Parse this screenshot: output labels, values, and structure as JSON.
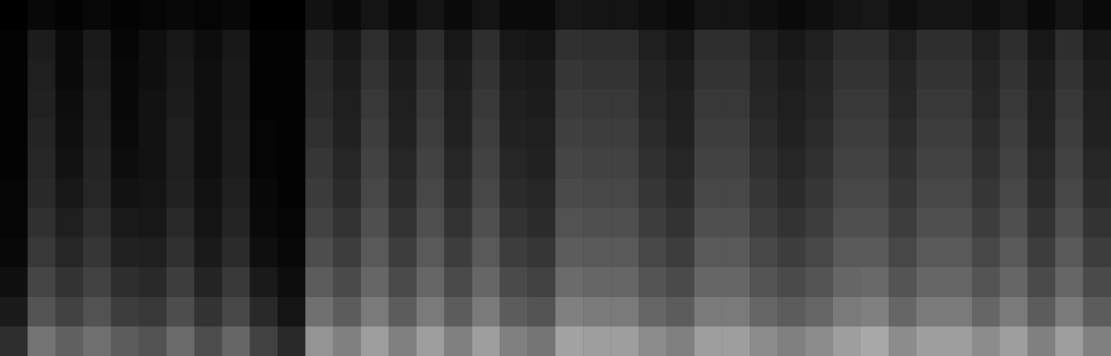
{
  "chart_data": {
    "type": "heatmap",
    "tick_labels": false,
    "grid": false,
    "color": [
      "#000000",
      "#ffffff"
    ],
    "color_range": [
      0,
      100
    ],
    "cells": [
      [
        18,
        10,
        6,
        3,
        2,
        2,
        1,
        1,
        1,
        1,
        1,
        0
      ],
      [
        45,
        33,
        27,
        22,
        19,
        16,
        15,
        14,
        13,
        12,
        11,
        3
      ],
      [
        38,
        26,
        20,
        15,
        12,
        9,
        7,
        6,
        5,
        4,
        4,
        1
      ],
      [
        44,
        32,
        26,
        21,
        18,
        15,
        14,
        13,
        12,
        11,
        10,
        3
      ],
      [
        36,
        24,
        18,
        13,
        10,
        7,
        5,
        4,
        3,
        3,
        2,
        1
      ],
      [
        32,
        22,
        16,
        12,
        9,
        8,
        7,
        7,
        7,
        6,
        6,
        2
      ],
      [
        42,
        30,
        24,
        19,
        16,
        13,
        12,
        12,
        11,
        10,
        9,
        3
      ],
      [
        30,
        20,
        14,
        10,
        8,
        7,
        6,
        6,
        6,
        6,
        5,
        2
      ],
      [
        40,
        28,
        22,
        17,
        14,
        12,
        11,
        11,
        10,
        10,
        9,
        3
      ],
      [
        26,
        16,
        10,
        6,
        4,
        3,
        2,
        2,
        1,
        1,
        1,
        0
      ],
      [
        16,
        8,
        5,
        3,
        2,
        1,
        1,
        1,
        1,
        1,
        1,
        0
      ],
      [
        58,
        44,
        36,
        30,
        26,
        23,
        21,
        19,
        17,
        16,
        14,
        7
      ],
      [
        50,
        36,
        29,
        24,
        20,
        17,
        15,
        13,
        12,
        11,
        9,
        4
      ],
      [
        62,
        48,
        40,
        35,
        31,
        28,
        26,
        24,
        22,
        20,
        18,
        8
      ],
      [
        50,
        36,
        29,
        24,
        20,
        17,
        15,
        13,
        12,
        11,
        9,
        4
      ],
      [
        62,
        48,
        40,
        35,
        31,
        28,
        26,
        24,
        22,
        20,
        18,
        8
      ],
      [
        50,
        36,
        29,
        24,
        20,
        17,
        15,
        13,
        12,
        11,
        9,
        4
      ],
      [
        62,
        48,
        40,
        35,
        31,
        28,
        26,
        24,
        22,
        20,
        18,
        8
      ],
      [
        50,
        36,
        29,
        24,
        20,
        17,
        15,
        13,
        12,
        11,
        9,
        4
      ],
      [
        46,
        33,
        26,
        21,
        17,
        15,
        13,
        12,
        11,
        10,
        8,
        4
      ],
      [
        64,
        50,
        42,
        36,
        32,
        29,
        27,
        25,
        23,
        21,
        19,
        9
      ],
      [
        62,
        48,
        40,
        35,
        31,
        28,
        26,
        24,
        22,
        20,
        18,
        8
      ],
      [
        62,
        48,
        40,
        35,
        31,
        28,
        26,
        24,
        22,
        20,
        18,
        8
      ],
      [
        55,
        40,
        33,
        28,
        24,
        21,
        19,
        17,
        15,
        14,
        12,
        6
      ],
      [
        50,
        36,
        29,
        24,
        20,
        17,
        15,
        13,
        12,
        11,
        9,
        4
      ],
      [
        62,
        48,
        40,
        35,
        31,
        28,
        26,
        24,
        22,
        20,
        18,
        8
      ],
      [
        62,
        48,
        40,
        35,
        31,
        28,
        26,
        24,
        22,
        20,
        18,
        8
      ],
      [
        55,
        40,
        33,
        28,
        24,
        21,
        19,
        17,
        15,
        14,
        12,
        6
      ],
      [
        50,
        36,
        29,
        24,
        20,
        17,
        15,
        13,
        12,
        11,
        9,
        4
      ],
      [
        55,
        40,
        33,
        28,
        24,
        21,
        19,
        17,
        15,
        14,
        12,
        6
      ],
      [
        62,
        48,
        40,
        35,
        31,
        28,
        26,
        24,
        22,
        20,
        18,
        8
      ],
      [
        66,
        50,
        41,
        35,
        31,
        28,
        26,
        24,
        22,
        20,
        18,
        9
      ],
      [
        55,
        40,
        33,
        28,
        24,
        21,
        19,
        17,
        15,
        14,
        12,
        6
      ],
      [
        62,
        48,
        40,
        35,
        31,
        28,
        26,
        24,
        22,
        20,
        18,
        8
      ],
      [
        62,
        48,
        40,
        35,
        31,
        28,
        26,
        24,
        22,
        20,
        18,
        8
      ],
      [
        55,
        40,
        33,
        28,
        24,
        21,
        19,
        17,
        15,
        14,
        12,
        6
      ],
      [
        62,
        48,
        40,
        35,
        31,
        28,
        26,
        24,
        22,
        20,
        18,
        8
      ],
      [
        50,
        36,
        29,
        24,
        20,
        17,
        15,
        13,
        12,
        11,
        9,
        4
      ],
      [
        62,
        48,
        40,
        35,
        31,
        28,
        26,
        24,
        22,
        20,
        18,
        8
      ],
      [
        50,
        36,
        29,
        24,
        20,
        17,
        15,
        13,
        12,
        11,
        9,
        4
      ]
    ]
  }
}
